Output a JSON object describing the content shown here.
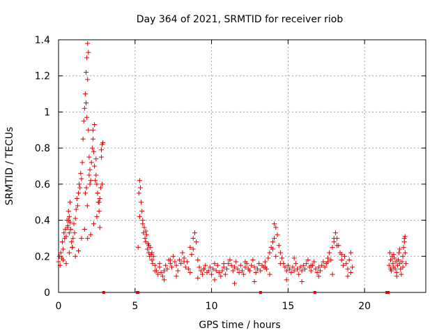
{
  "chart_data": {
    "type": "scatter",
    "title": "Day 364 of 2021, SRMTID for receiver riob",
    "xlabel": "GPS time / hours",
    "ylabel": "SRMTID / TECUs",
    "xlim": [
      0,
      24
    ],
    "ylim": [
      0,
      1.4
    ],
    "x_ticks": [
      "0",
      "5",
      "10",
      "15",
      "20"
    ],
    "x_tick_values": [
      0,
      5,
      10,
      15,
      20
    ],
    "y_ticks": [
      "0",
      "0.2",
      "0.4",
      "0.6",
      "0.8",
      "1",
      "1.2",
      "1.4"
    ],
    "y_tick_values": [
      0,
      0.2,
      0.4,
      0.6,
      0.8,
      1.0,
      1.2,
      1.4
    ],
    "grid": true,
    "marker": "plus",
    "color": "#e00000",
    "series": [
      {
        "name": "SRMTID",
        "x": [
          0.0,
          0.05,
          0.1,
          0.15,
          0.2,
          0.25,
          0.3,
          0.35,
          0.4,
          0.45,
          0.5,
          0.55,
          0.6,
          0.65,
          0.7,
          0.75,
          0.8,
          0.85,
          0.9,
          0.95,
          1.0,
          1.05,
          1.1,
          1.15,
          1.2,
          1.25,
          1.3,
          1.35,
          1.4,
          1.45,
          1.5,
          1.55,
          1.6,
          1.65,
          1.7,
          1.75,
          1.8,
          1.85,
          1.9,
          1.95,
          2.0,
          2.05,
          2.1,
          2.15,
          2.2,
          2.25,
          2.3,
          2.35,
          2.4,
          2.45,
          2.5,
          2.55,
          2.6,
          2.65,
          2.7,
          2.75,
          2.8,
          2.85,
          2.9,
          0.3,
          0.5,
          0.7,
          0.9,
          1.1,
          1.3,
          1.5,
          1.7,
          1.9,
          2.1,
          2.3,
          2.5,
          2.7,
          1.8,
          1.85,
          1.9,
          1.95,
          2.0,
          2.05,
          1.75,
          1.82,
          1.88,
          2.25,
          2.35,
          2.45,
          2.55,
          2.65,
          2.8,
          2.85,
          0.6,
          0.65,
          0.7,
          0.75,
          5.2,
          5.25,
          5.3,
          5.35,
          5.4,
          5.45,
          5.5,
          5.55,
          5.6,
          5.65,
          5.7,
          5.75,
          5.8,
          5.85,
          5.9,
          5.95,
          6.0,
          6.05,
          6.1,
          6.15,
          6.2,
          6.3,
          6.4,
          6.5,
          6.6,
          6.7,
          6.8,
          6.9,
          7.0,
          7.1,
          7.2,
          7.3,
          7.4,
          7.5,
          7.6,
          7.7,
          7.8,
          7.9,
          8.0,
          8.1,
          8.2,
          8.3,
          8.4,
          8.5,
          8.6,
          8.7,
          8.8,
          8.9,
          9.0,
          9.1,
          9.2,
          9.3,
          9.4,
          9.5,
          9.6,
          9.7,
          9.8,
          9.9,
          10.0,
          10.1,
          10.2,
          10.3,
          10.4,
          10.5,
          10.6,
          10.7,
          10.8,
          10.9,
          11.0,
          11.1,
          11.2,
          11.3,
          11.4,
          11.5,
          11.6,
          11.7,
          11.8,
          11.9,
          12.0,
          12.1,
          12.2,
          12.3,
          12.4,
          12.5,
          12.6,
          12.7,
          12.8,
          12.9,
          13.0,
          13.1,
          13.2,
          13.3,
          13.4,
          13.5,
          13.6,
          13.7,
          13.8,
          13.9,
          14.0,
          14.1,
          14.2,
          14.3,
          14.4,
          14.5,
          14.6,
          14.7,
          14.8,
          14.9,
          15.0,
          15.1,
          15.2,
          15.3,
          15.4,
          15.5,
          15.6,
          15.7,
          15.8,
          15.9,
          16.0,
          16.1,
          16.2,
          16.3,
          16.4,
          16.5,
          16.6,
          16.7,
          16.8,
          16.9,
          17.0,
          17.1,
          17.2,
          17.3,
          17.4,
          17.5,
          17.6,
          17.7,
          17.8,
          17.9,
          18.0,
          18.1,
          18.2,
          18.3,
          18.4,
          18.5,
          18.6,
          18.7,
          18.8,
          18.9,
          19.0,
          19.1,
          19.2,
          5.3,
          5.5,
          5.7,
          5.9,
          6.1,
          6.3,
          6.6,
          6.9,
          7.3,
          7.7,
          8.2,
          8.6,
          8.8,
          9.1,
          9.5,
          10.2,
          10.8,
          11.5,
          12.2,
          12.8,
          13.5,
          13.8,
          14.0,
          14.1,
          14.2,
          14.5,
          14.9,
          15.4,
          15.9,
          16.5,
          17.0,
          17.6,
          17.9,
          18.0,
          18.2,
          18.5,
          18.9,
          19.1,
          21.6,
          21.65,
          21.7,
          21.75,
          21.8,
          21.85,
          21.9,
          21.95,
          22.0,
          22.05,
          22.1,
          22.15,
          22.2,
          22.25,
          22.3,
          22.35,
          22.4,
          22.45,
          22.5,
          22.55,
          22.6,
          22.65,
          22.7,
          21.7,
          21.9,
          22.1,
          22.3,
          22.5,
          22.6,
          22.65
        ],
        "y": [
          0.17,
          0.2,
          0.15,
          0.22,
          0.19,
          0.28,
          0.24,
          0.33,
          0.3,
          0.35,
          0.31,
          0.4,
          0.36,
          0.45,
          0.42,
          0.5,
          0.35,
          0.28,
          0.25,
          0.3,
          0.38,
          0.33,
          0.41,
          0.46,
          0.52,
          0.48,
          0.55,
          0.6,
          0.58,
          0.66,
          0.63,
          0.72,
          0.85,
          0.95,
          1.02,
          1.1,
          1.22,
          1.3,
          1.38,
          0.9,
          0.75,
          0.68,
          0.62,
          0.72,
          0.8,
          0.85,
          0.78,
          0.7,
          0.62,
          0.65,
          0.6,
          0.55,
          0.5,
          0.45,
          0.52,
          0.58,
          0.75,
          0.82,
          0.83,
          0.18,
          0.16,
          0.22,
          0.25,
          0.2,
          0.23,
          0.3,
          0.35,
          0.3,
          0.32,
          0.38,
          0.42,
          0.36,
          1.05,
          0.97,
          1.18,
          1.33,
          0.65,
          0.6,
          0.55,
          0.58,
          0.48,
          0.9,
          0.93,
          0.74,
          0.55,
          0.5,
          0.79,
          0.6,
          0.37,
          0.4,
          0.33,
          0.39,
          0.25,
          0.55,
          0.62,
          0.58,
          0.5,
          0.45,
          0.4,
          0.33,
          0.36,
          0.3,
          0.28,
          0.32,
          0.24,
          0.27,
          0.22,
          0.2,
          0.25,
          0.21,
          0.18,
          0.16,
          0.2,
          0.15,
          0.12,
          0.1,
          0.14,
          0.11,
          0.09,
          0.12,
          0.15,
          0.13,
          0.18,
          0.16,
          0.14,
          0.2,
          0.17,
          0.15,
          0.12,
          0.18,
          0.16,
          0.22,
          0.19,
          0.14,
          0.17,
          0.13,
          0.25,
          0.21,
          0.3,
          0.33,
          0.28,
          0.18,
          0.14,
          0.12,
          0.1,
          0.13,
          0.15,
          0.11,
          0.12,
          0.14,
          0.1,
          0.13,
          0.16,
          0.12,
          0.15,
          0.11,
          0.09,
          0.12,
          0.14,
          0.1,
          0.13,
          0.16,
          0.18,
          0.15,
          0.12,
          0.14,
          0.17,
          0.13,
          0.11,
          0.15,
          0.12,
          0.1,
          0.14,
          0.16,
          0.13,
          0.12,
          0.15,
          0.18,
          0.14,
          0.11,
          0.13,
          0.16,
          0.12,
          0.15,
          0.14,
          0.17,
          0.13,
          0.19,
          0.22,
          0.25,
          0.28,
          0.3,
          0.36,
          0.32,
          0.26,
          0.22,
          0.19,
          0.16,
          0.14,
          0.12,
          0.15,
          0.13,
          0.11,
          0.14,
          0.12,
          0.16,
          0.13,
          0.1,
          0.14,
          0.12,
          0.15,
          0.13,
          0.16,
          0.18,
          0.14,
          0.12,
          0.15,
          0.17,
          0.13,
          0.11,
          0.14,
          0.12,
          0.15,
          0.17,
          0.14,
          0.16,
          0.19,
          0.22,
          0.18,
          0.25,
          0.28,
          0.33,
          0.3,
          0.26,
          0.22,
          0.18,
          0.15,
          0.2,
          0.16,
          0.13,
          0.18,
          0.22,
          0.14,
          0.42,
          0.38,
          0.34,
          0.26,
          0.22,
          0.12,
          0.16,
          0.07,
          0.18,
          0.09,
          0.17,
          0.11,
          0.24,
          0.08,
          0.13,
          0.07,
          0.16,
          0.05,
          0.17,
          0.06,
          0.14,
          0.1,
          0.24,
          0.38,
          0.2,
          0.16,
          0.07,
          0.19,
          0.06,
          0.15,
          0.09,
          0.17,
          0.1,
          0.3,
          0.26,
          0.21,
          0.09,
          0.11,
          0.15,
          0.22,
          0.18,
          0.12,
          0.2,
          0.16,
          0.14,
          0.19,
          0.13,
          0.17,
          0.11,
          0.15,
          0.18,
          0.22,
          0.16,
          0.13,
          0.1,
          0.17,
          0.2,
          0.25,
          0.3,
          0.22,
          0.16,
          0.13,
          0.21,
          0.09,
          0.24,
          0.14,
          0.28,
          0.31
        ]
      }
    ],
    "baseline_markers_x": [
      2.95,
      5.15,
      5.2,
      13.2,
      16.75,
      21.45,
      21.5,
      21.55
    ]
  }
}
